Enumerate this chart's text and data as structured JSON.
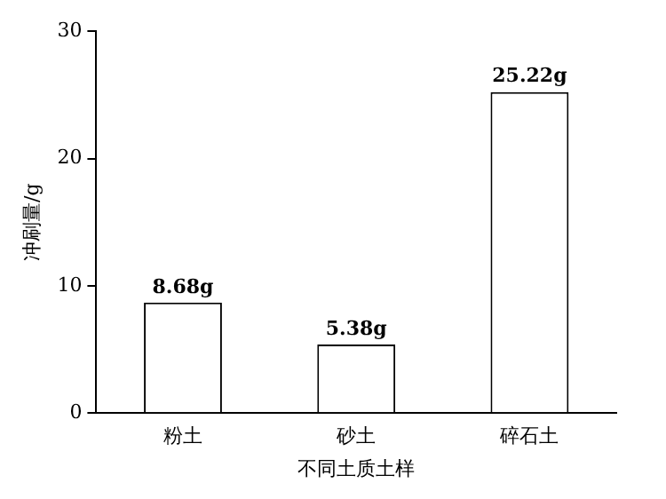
{
  "chart_data": {
    "type": "bar",
    "xlabel": "不同土质土样",
    "ylabel": "冲刷量/g",
    "categories": [
      "粉土",
      "砂土",
      "碎石土"
    ],
    "values": [
      8.68,
      5.38,
      25.22
    ],
    "value_labels": [
      "8.68g",
      "5.38g",
      "25.22g"
    ],
    "color": "#ffffff",
    "ylim": [
      0,
      30
    ],
    "yticks": [
      0,
      10,
      20,
      30
    ],
    "grid": false,
    "legend": false
  }
}
